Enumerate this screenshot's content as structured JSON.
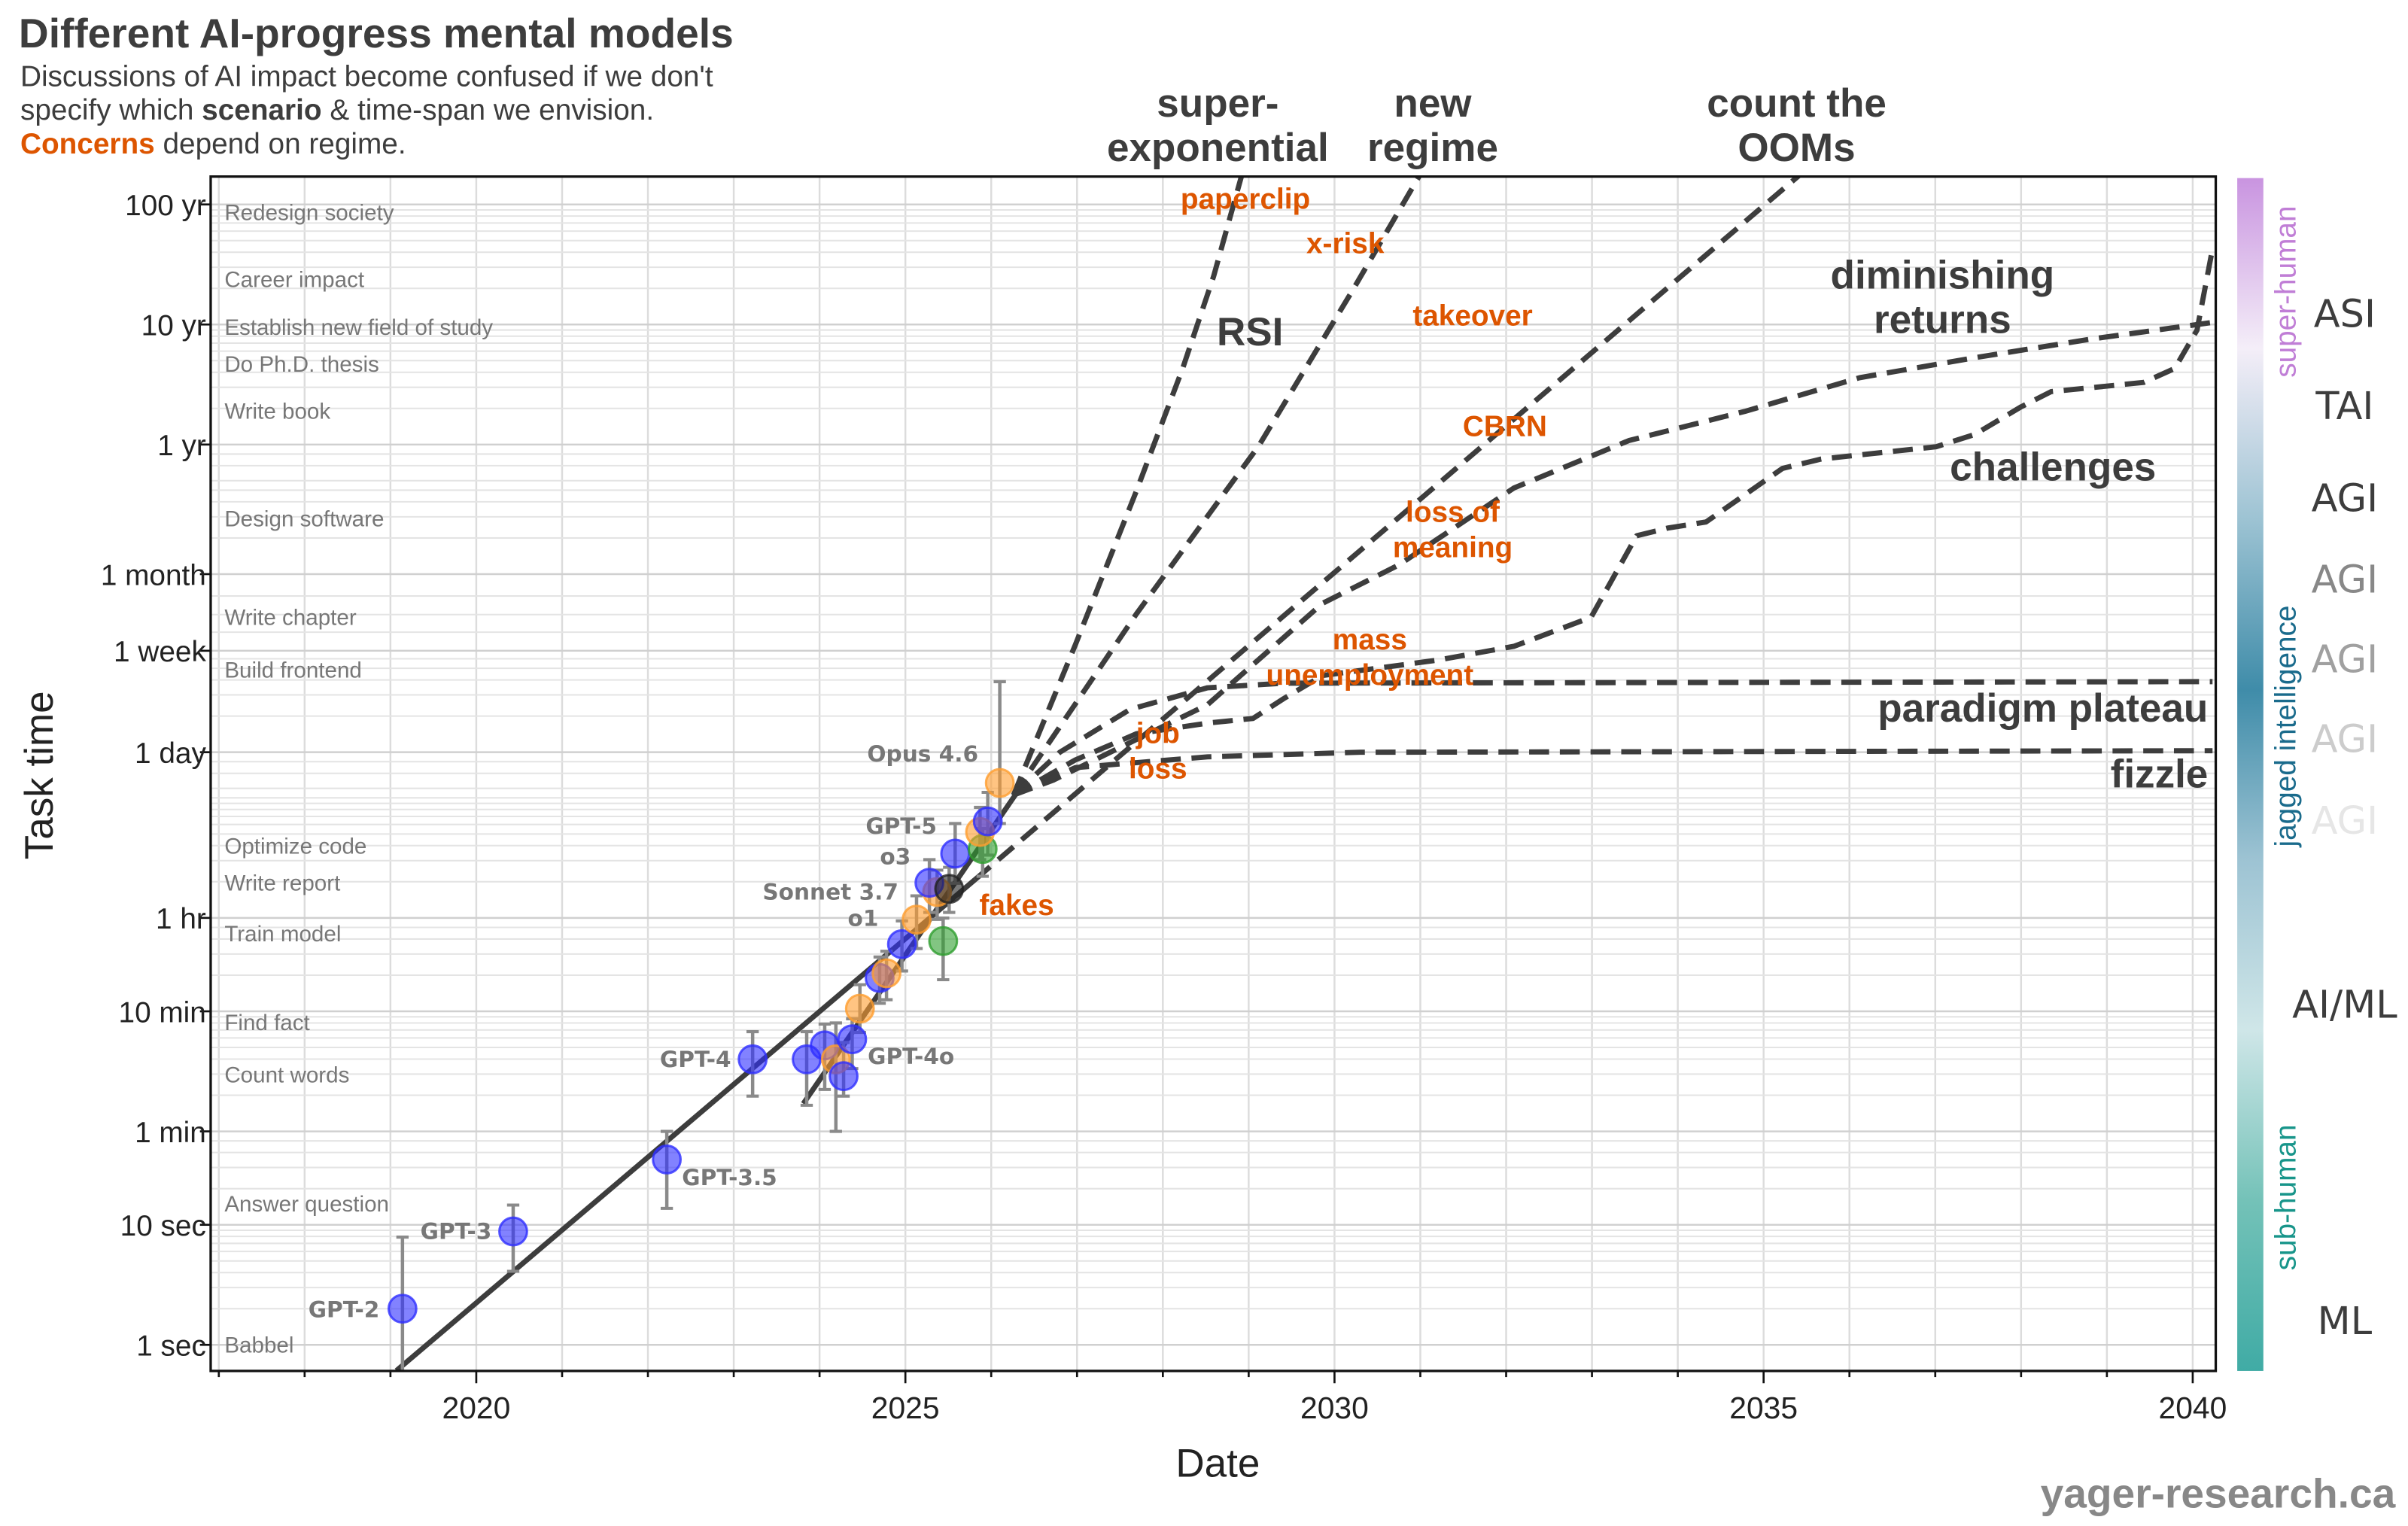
{
  "header": {
    "title": "Different AI-progress mental models",
    "subtitle_line1": "Discussions of AI impact become confused if we don't",
    "subtitle_line2_a": "specify which ",
    "subtitle_line2_bold": "scenario",
    "subtitle_line2_b": " & time-span we envision.",
    "subtitle_line3_accent": "Concerns",
    "subtitle_line3_rest": " depend on regime."
  },
  "footer": {
    "credit": "yager-research.ca"
  },
  "colors": {
    "openai": "#2e2eff",
    "anthropic": "#ff9d2e",
    "green": "#2e9e2e",
    "black": "#222222",
    "concern": "#dd5500",
    "scenario": "#3d3d3d"
  },
  "chart_data": {
    "type": "scatter",
    "title": "Different AI-progress mental models",
    "xlabel": "Date",
    "ylabel": "Task time",
    "x_scale": "linear",
    "y_scale": "log",
    "xlim": [
      2016.9,
      2040.4
    ],
    "ylim_seconds": [
      0.6,
      5400000000
    ],
    "grid": true,
    "x_ticks": [
      2020,
      2025,
      2030,
      2035,
      2040
    ],
    "y_ticks": [
      {
        "label": "1 sec",
        "seconds": 1
      },
      {
        "label": "10 sec",
        "seconds": 10
      },
      {
        "label": "1 min",
        "seconds": 60
      },
      {
        "label": "10 min",
        "seconds": 600
      },
      {
        "label": "1 hr",
        "seconds": 3600
      },
      {
        "label": "1 day",
        "seconds": 86400
      },
      {
        "label": "1 week",
        "seconds": 604800
      },
      {
        "label": "1 month",
        "seconds": 2629800
      },
      {
        "label": "1 yr",
        "seconds": 31557600
      },
      {
        "label": "10 yr",
        "seconds": 315576000
      },
      {
        "label": "100 yr",
        "seconds": 3155760000
      }
    ],
    "tasks": [
      {
        "label": "Redesign society",
        "seconds": 2700000000
      },
      {
        "label": "Career impact",
        "seconds": 750000000
      },
      {
        "label": "Establish new field of study",
        "seconds": 300000000
      },
      {
        "label": "Do Ph.D. thesis",
        "seconds": 148000000
      },
      {
        "label": "Write book",
        "seconds": 60000000
      },
      {
        "label": "Design software",
        "seconds": 7600000
      },
      {
        "label": "Write chapter",
        "seconds": 1150000
      },
      {
        "label": "Build frontend",
        "seconds": 420000
      },
      {
        "label": "Optimize code",
        "seconds": 14300
      },
      {
        "label": "Write report",
        "seconds": 7060
      },
      {
        "label": "Train model",
        "seconds": 2670
      },
      {
        "label": "Find fact",
        "seconds": 485
      },
      {
        "label": "Count words",
        "seconds": 178
      },
      {
        "label": "Answer question",
        "seconds": 15
      },
      {
        "label": "Babbel",
        "seconds": 1
      }
    ],
    "models": [
      {
        "label": "GPT-2",
        "date": 2019.14,
        "seconds": 2.0,
        "err": [
          0.5,
          7.9
        ],
        "color": "openai"
      },
      {
        "label": "GPT-3",
        "date": 2020.43,
        "seconds": 8.8,
        "err": [
          4.1,
          14.6
        ],
        "color": "openai"
      },
      {
        "label": "GPT-3.5",
        "date": 2022.22,
        "seconds": 35,
        "err": [
          13.7,
          60
        ],
        "color": "openai"
      },
      {
        "label": "GPT-4",
        "date": 2023.22,
        "seconds": 239,
        "err": [
          118,
          406
        ],
        "color": "openai"
      },
      {
        "label": "",
        "date": 2023.85,
        "seconds": 239,
        "err": [
          99,
          406
        ],
        "color": "openai"
      },
      {
        "label": "",
        "date": 2024.06,
        "seconds": 312,
        "err": [
          134,
          470
        ],
        "color": "openai"
      },
      {
        "label": "",
        "date": 2024.19,
        "seconds": 239,
        "err": [
          60,
          480
        ],
        "color": "anthropic"
      },
      {
        "label": "",
        "date": 2024.28,
        "seconds": 173,
        "err": [
          118,
          330
        ],
        "color": "openai"
      },
      {
        "label": "GPT-4o",
        "date": 2024.38,
        "seconds": 351,
        "err": [
          200,
          520
        ],
        "color": "openai"
      },
      {
        "label": "",
        "date": 2024.47,
        "seconds": 631,
        "err": [
          400,
          1000
        ],
        "color": "anthropic"
      },
      {
        "label": "",
        "date": 2024.7,
        "seconds": 1138,
        "err": [
          700,
          1700
        ],
        "color": "openai"
      },
      {
        "label": "",
        "date": 2024.78,
        "seconds": 1244,
        "err": [
          750,
          1900
        ],
        "color": "anthropic"
      },
      {
        "label": "o1",
        "date": 2024.96,
        "seconds": 2176,
        "err": [
          1300,
          3400
        ],
        "color": "openai"
      },
      {
        "label": "Sonnet 3.7",
        "date": 2025.13,
        "seconds": 3480,
        "err": [
          2000,
          5500
        ],
        "color": "anthropic"
      },
      {
        "label": "",
        "date": 2025.44,
        "seconds": 2310,
        "err": [
          1100,
          3590
        ],
        "color": "green"
      },
      {
        "label": "",
        "date": 2025.37,
        "seconds": 5920,
        "err": [
          3500,
          9000
        ],
        "color": "anthropic"
      },
      {
        "label": "o3",
        "date": 2025.28,
        "seconds": 7060,
        "err": [
          4000,
          11000
        ],
        "color": "openai"
      },
      {
        "label": "",
        "date": 2025.51,
        "seconds": 6280,
        "err": [
          4000,
          9500
        ],
        "color": "black"
      },
      {
        "label": "GPT-5",
        "date": 2025.58,
        "seconds": 12360,
        "err": [
          7000,
          22000
        ],
        "color": "openai"
      },
      {
        "label": "",
        "date": 2025.9,
        "seconds": 13500,
        "err": [
          8000,
          20000
        ],
        "color": "green"
      },
      {
        "label": "",
        "date": 2025.87,
        "seconds": 18700,
        "err": [
          11000,
          30000
        ],
        "color": "anthropic"
      },
      {
        "label": "",
        "date": 2025.96,
        "seconds": 22900,
        "err": [
          12000,
          40000
        ],
        "color": "openai"
      },
      {
        "label": "Opus 4.6",
        "date": 2026.1,
        "seconds": 47900,
        "err": [
          22000,
          334000
        ],
        "color": "anthropic"
      }
    ],
    "fit_lines": [
      {
        "points": [
          [
            2019.07,
            0.61
          ],
          [
            2025.81,
            7500
          ]
        ]
      },
      {
        "points": [
          [
            2023.81,
            102
          ],
          [
            2026.35,
            45000
          ]
        ]
      }
    ],
    "scenarios": [
      {
        "name": "super-exponential",
        "points": [
          [
            2026.26,
            38000
          ],
          [
            2026.98,
            678000
          ],
          [
            2027.69,
            12900000
          ],
          [
            2028.23,
            136000000
          ],
          [
            2028.59,
            790000000
          ],
          [
            2028.93,
            5900000000
          ]
        ]
      },
      {
        "name": "new regime",
        "points": [
          [
            2026.26,
            38000
          ],
          [
            2027.69,
            1220000
          ],
          [
            2029.12,
            31000000
          ],
          [
            2030.2,
            590000000
          ],
          [
            2031.04,
            6300000000
          ]
        ]
      },
      {
        "name": "count the OOMs",
        "points": [
          [
            2025.81,
            7500
          ],
          [
            2035.51,
            6300000000
          ]
        ]
      },
      {
        "name": "diminishing returns",
        "points": [
          [
            2026.26,
            38000
          ],
          [
            2026.73,
            50800
          ],
          [
            2028.52,
            215000
          ],
          [
            2029.86,
            1500000
          ],
          [
            2030.75,
            3130000
          ],
          [
            2032.09,
            13700000
          ],
          [
            2033.43,
            34000000
          ],
          [
            2034.78,
            59600000
          ],
          [
            2036.12,
            114000000
          ],
          [
            2037.46,
            167000000
          ],
          [
            2038.8,
            238000000
          ],
          [
            2040.23,
            329000000
          ]
        ]
      },
      {
        "name": "challenges",
        "points": [
          [
            2026.26,
            38000
          ],
          [
            2026.98,
            74500
          ],
          [
            2027.69,
            123000
          ],
          [
            2028.52,
            151000
          ],
          [
            2029.05,
            165000
          ],
          [
            2029.41,
            242000
          ],
          [
            2029.86,
            376000
          ],
          [
            2031.2,
            505000
          ],
          [
            2032.09,
            658000
          ],
          [
            2032.99,
            1150000
          ],
          [
            2033.52,
            5480000
          ],
          [
            2033.88,
            6350000
          ],
          [
            2034.33,
            7150000
          ],
          [
            2035.22,
            20000000
          ],
          [
            2035.67,
            23900000
          ],
          [
            2037.01,
            30300000
          ],
          [
            2037.46,
            38300000
          ],
          [
            2038.0,
            65000000
          ],
          [
            2038.35,
            87000000
          ],
          [
            2039.43,
            104000000
          ],
          [
            2039.79,
            136000000
          ],
          [
            2040.05,
            284000000
          ],
          [
            2040.23,
            1350000000
          ]
        ]
      },
      {
        "name": "paradigm plateau",
        "points": [
          [
            2026.26,
            38000
          ],
          [
            2026.8,
            86300
          ],
          [
            2027.62,
            197000
          ],
          [
            2028.52,
            297000
          ],
          [
            2029.41,
            325000
          ],
          [
            2040.23,
            334000
          ]
        ]
      },
      {
        "name": "fizzle",
        "points": [
          [
            2026.26,
            38000
          ],
          [
            2026.98,
            64300
          ],
          [
            2028.52,
            79000
          ],
          [
            2030.3,
            86300
          ],
          [
            2040.23,
            89000
          ]
        ]
      }
    ],
    "scenario_labels": {
      "super_exponential": [
        "super-",
        "exponential"
      ],
      "new_regime": [
        "new",
        "regime"
      ],
      "count_the_ooms": [
        "count the",
        "OOMs"
      ],
      "rsi": "RSI",
      "diminishing_returns": [
        "diminishing",
        "returns"
      ],
      "challenges": "challenges",
      "paradigm_plateau": "paradigm plateau",
      "fizzle": "fizzle"
    },
    "concerns": {
      "paperclip": "paperclip",
      "x_risk": "x-risk",
      "takeover": "takeover",
      "cbrn": "CBRN",
      "loss_of_meaning": [
        "loss of",
        "meaning"
      ],
      "mass_unemployment": [
        "mass",
        "unemployment"
      ],
      "job_loss": [
        "job",
        "loss"
      ],
      "fakes": "fakes"
    },
    "intelligence_scale": {
      "regions": {
        "super_human": "super-human",
        "jagged": "jagged intelligence",
        "sub_human": "sub-human"
      },
      "region_colors": {
        "super_human": "#c07ed6",
        "jagged": "#1a6b8c",
        "sub_human": "#18958a"
      },
      "gradient": [
        "#c994e0",
        "#f4eef8",
        "#9dc3d3",
        "#3f8ca9",
        "#9dc3d3",
        "#cfe6e8",
        "#74c2b8",
        "#40aba5"
      ],
      "levels": [
        {
          "label": "ASI",
          "color": "#3d3d3d"
        },
        {
          "label": "TAI",
          "color": "#3d3d3d"
        },
        {
          "label": "AGI",
          "color": "#3d3d3d"
        },
        {
          "label": "AGI",
          "color": "#888888"
        },
        {
          "label": "AGI",
          "color": "#a0a0a0"
        },
        {
          "label": "AGI",
          "color": "#cccccc"
        },
        {
          "label": "AGI",
          "color": "#e6e6e6"
        },
        {
          "label": "AI/ML",
          "color": "#3d3d3d"
        },
        {
          "label": "ML",
          "color": "#3d3d3d"
        }
      ]
    }
  }
}
